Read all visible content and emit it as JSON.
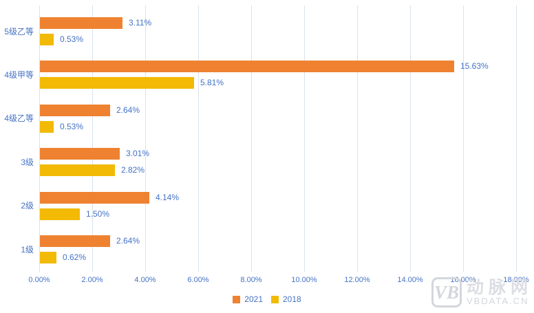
{
  "chart_data": {
    "type": "bar",
    "orientation": "horizontal",
    "title": "",
    "xlabel": "",
    "ylabel": "",
    "grid": true,
    "categories": [
      "5级乙等",
      "4级甲等",
      "4级乙等",
      "3级",
      "2级",
      "1级"
    ],
    "series": [
      {
        "name": "2021",
        "color": "#EE8231",
        "values": [
          3.11,
          15.63,
          2.64,
          3.01,
          4.14,
          2.64
        ],
        "labels": [
          "3.11%",
          "15.63%",
          "2.64%",
          "3.01%",
          "4.14%",
          "2.64%"
        ]
      },
      {
        "name": "2018",
        "color": "#F2BA05",
        "values": [
          0.53,
          5.81,
          0.53,
          2.82,
          1.5,
          0.62
        ],
        "labels": [
          "0.53%",
          "5.81%",
          "0.53%",
          "2.82%",
          "1.50%",
          "0.62%"
        ]
      }
    ],
    "x_axis": {
      "min": 0,
      "max": 18,
      "tick_values": [
        0,
        2,
        4,
        6,
        8,
        10,
        12,
        14,
        16,
        18
      ],
      "tick_labels": [
        "0.00%",
        "2.00%",
        "4.00%",
        "6.00%",
        "8.00%",
        "10.00%",
        "12.00%",
        "14.00%",
        "16.00%",
        "18.00%"
      ]
    },
    "legend": {
      "position": "bottom",
      "entries": [
        "2021",
        "2018"
      ]
    }
  },
  "colors": {
    "label_text": "#4472C4",
    "gridline": "#D9E1F0",
    "background": "#FFFFFF"
  },
  "watermark": {
    "logo": "VB",
    "brand": "动脉网",
    "url": "VBDATA.CN"
  }
}
